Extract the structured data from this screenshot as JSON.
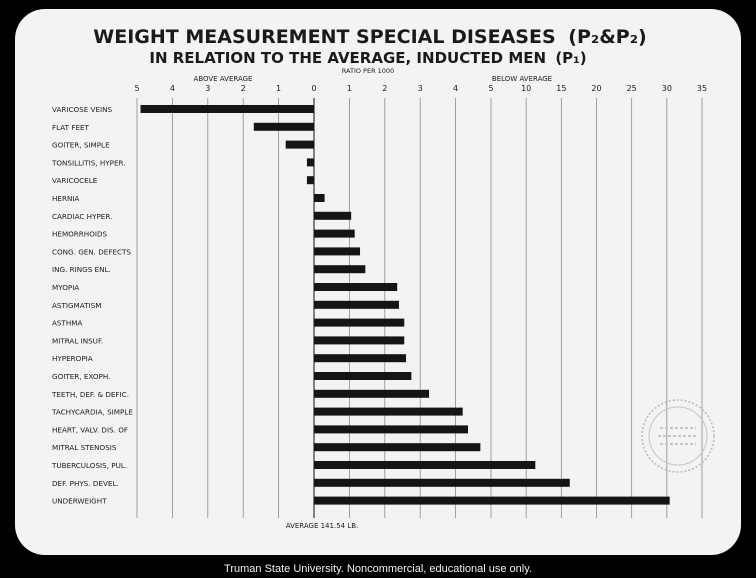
{
  "credit": "Truman State University.  Noncommercial, educational use only.",
  "chart_data": {
    "type": "bar",
    "orientation": "horizontal",
    "title_main": "WEIGHT MEASUREMENT SPECIAL DISEASES",
    "title_main_sub": "(P₂&P₂)",
    "title_line2": "IN RELATION TO THE AVERAGE, INDUCTED MEN",
    "title_line2_sub": "(P₁)",
    "subtitle": "RATIO PER 1000",
    "left_label": "ABOVE AVERAGE",
    "right_label": "BELOW AVERAGE",
    "footer_label": "AVERAGE 141.54 LB.",
    "left_ticks": [
      5,
      4,
      3,
      2,
      1
    ],
    "right_ticks": [
      0,
      1,
      2,
      3,
      4,
      5,
      10,
      15,
      20,
      25,
      30,
      35
    ],
    "categories": [
      "VARICOSE VEINS",
      "FLAT FEET",
      "GOITER, SIMPLE",
      "TONSILLITIS, HYPER.",
      "VARICOCELE",
      "HERNIA",
      "CARDIAC HYPER.",
      "HEMORRHOIDS",
      "CONG. GEN. DEFECTS",
      "ING. RINGS ENL.",
      "MYOPIA",
      "ASTIGMATISM",
      "ASTHMA",
      "MITRAL INSUF.",
      "HYPEROPIA",
      "GOITER, EXOPH.",
      "TEETH, DEF. & DEFIC.",
      "TACHYCARDIA, SIMPLE",
      "HEART, VALV. DIS. OF",
      "MITRAL STENOSIS",
      "TUBERCULOSIS, PUL.",
      "DEF. PHYS. DEVEL.",
      "UNDERWEIGHT"
    ],
    "values": [
      -4.9,
      -1.7,
      -0.8,
      -0.2,
      -0.2,
      0.3,
      1.05,
      1.15,
      1.3,
      1.45,
      2.35,
      2.4,
      2.55,
      2.55,
      2.6,
      2.75,
      3.25,
      4.2,
      4.35,
      4.7,
      11.3,
      16.2,
      30.4
    ],
    "colors": {
      "slide": "#f3f3f1",
      "bar": "#151515",
      "grid": "#8a8a8a",
      "text": "#1a1a1a"
    }
  }
}
